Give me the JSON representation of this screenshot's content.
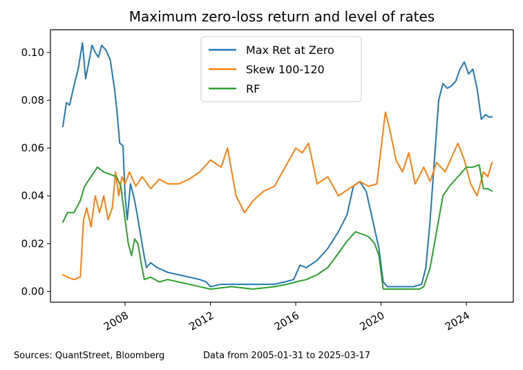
{
  "chart_data": {
    "type": "line",
    "title": "Maximum zero-loss return and level of rates",
    "xlabel": "",
    "ylabel": "",
    "xlim": [
      2004.5,
      2026.2
    ],
    "ylim": [
      -0.0045,
      0.1095
    ],
    "x_ticks": [
      2008,
      2012,
      2016,
      2020,
      2024
    ],
    "x_tick_labels": [
      "2008",
      "2012",
      "2016",
      "2020",
      "2024"
    ],
    "y_ticks": [
      0.0,
      0.02,
      0.04,
      0.06,
      0.08,
      0.1
    ],
    "y_tick_labels": [
      "0.00",
      "0.02",
      "0.04",
      "0.06",
      "0.08",
      "0.10"
    ],
    "grid": false,
    "legend_position": "upper-center",
    "series": [
      {
        "name": "Max Ret at Zero",
        "color": "#1f77b4",
        "x": [
          2005.08,
          2005.25,
          2005.4,
          2005.6,
          2005.8,
          2006.0,
          2006.15,
          2006.3,
          2006.45,
          2006.6,
          2006.75,
          2006.9,
          2007.1,
          2007.3,
          2007.5,
          2007.6,
          2007.75,
          2007.9,
          2008.0,
          2008.1,
          2008.25,
          2008.4,
          2008.55,
          2008.7,
          2008.85,
          2009.0,
          2009.2,
          2009.5,
          2010.0,
          2010.5,
          2011.0,
          2011.5,
          2011.8,
          2012.0,
          2012.5,
          2013.0,
          2014.0,
          2015.0,
          2015.5,
          2015.9,
          2016.2,
          2016.5,
          2017.0,
          2017.5,
          2018.0,
          2018.4,
          2018.7,
          2019.0,
          2019.3,
          2019.6,
          2019.9,
          2020.1,
          2020.3,
          2020.6,
          2021.0,
          2021.5,
          2021.9,
          2022.1,
          2022.3,
          2022.5,
          2022.7,
          2022.9,
          2023.1,
          2023.3,
          2023.5,
          2023.7,
          2023.9,
          2024.1,
          2024.3,
          2024.5,
          2024.7,
          2024.9,
          2025.05,
          2025.2
        ],
        "values": [
          0.069,
          0.079,
          0.078,
          0.086,
          0.093,
          0.104,
          0.089,
          0.096,
          0.103,
          0.1,
          0.098,
          0.103,
          0.101,
          0.097,
          0.085,
          0.077,
          0.062,
          0.061,
          0.04,
          0.03,
          0.045,
          0.04,
          0.033,
          0.025,
          0.017,
          0.01,
          0.012,
          0.01,
          0.008,
          0.007,
          0.006,
          0.005,
          0.004,
          0.002,
          0.003,
          0.003,
          0.003,
          0.003,
          0.004,
          0.005,
          0.011,
          0.01,
          0.013,
          0.018,
          0.025,
          0.032,
          0.044,
          0.046,
          0.042,
          0.03,
          0.018,
          0.004,
          0.002,
          0.002,
          0.002,
          0.002,
          0.003,
          0.01,
          0.03,
          0.055,
          0.08,
          0.087,
          0.085,
          0.086,
          0.088,
          0.093,
          0.096,
          0.091,
          0.093,
          0.085,
          0.072,
          0.074,
          0.073,
          0.073
        ]
      },
      {
        "name": "Skew 100-120",
        "color": "#ff7f0e",
        "x": [
          2005.08,
          2005.3,
          2005.6,
          2005.9,
          2006.05,
          2006.2,
          2006.4,
          2006.6,
          2006.8,
          2007.0,
          2007.2,
          2007.4,
          2007.55,
          2007.7,
          2007.85,
          2008.0,
          2008.2,
          2008.5,
          2008.8,
          2009.2,
          2009.6,
          2010.0,
          2010.5,
          2011.0,
          2011.5,
          2012.0,
          2012.5,
          2012.8,
          2013.2,
          2013.6,
          2014.0,
          2014.5,
          2015.0,
          2015.5,
          2016.0,
          2016.3,
          2016.6,
          2017.0,
          2017.5,
          2018.0,
          2018.5,
          2019.0,
          2019.4,
          2019.8,
          2020.0,
          2020.2,
          2020.4,
          2020.7,
          2021.0,
          2021.3,
          2021.6,
          2022.0,
          2022.3,
          2022.6,
          2023.0,
          2023.3,
          2023.6,
          2023.9,
          2024.2,
          2024.5,
          2024.8,
          2025.0,
          2025.2
        ],
        "values": [
          0.007,
          0.006,
          0.005,
          0.006,
          0.03,
          0.035,
          0.027,
          0.04,
          0.033,
          0.04,
          0.03,
          0.035,
          0.05,
          0.04,
          0.048,
          0.045,
          0.05,
          0.044,
          0.048,
          0.043,
          0.047,
          0.045,
          0.045,
          0.047,
          0.05,
          0.055,
          0.052,
          0.06,
          0.04,
          0.033,
          0.038,
          0.042,
          0.044,
          0.052,
          0.06,
          0.058,
          0.062,
          0.045,
          0.048,
          0.04,
          0.043,
          0.046,
          0.044,
          0.045,
          0.06,
          0.075,
          0.068,
          0.055,
          0.05,
          0.058,
          0.045,
          0.052,
          0.046,
          0.054,
          0.05,
          0.056,
          0.062,
          0.055,
          0.045,
          0.04,
          0.05,
          0.048,
          0.054
        ]
      },
      {
        "name": "RF",
        "color": "#2ca02c",
        "x": [
          2005.08,
          2005.3,
          2005.6,
          2005.9,
          2006.1,
          2006.4,
          2006.7,
          2007.0,
          2007.3,
          2007.6,
          2007.8,
          2008.0,
          2008.15,
          2008.3,
          2008.45,
          2008.6,
          2008.75,
          2008.9,
          2009.2,
          2009.6,
          2010.0,
          2010.5,
          2011.0,
          2011.5,
          2012.0,
          2013.0,
          2014.0,
          2015.0,
          2015.6,
          2016.0,
          2016.5,
          2017.0,
          2017.5,
          2018.0,
          2018.4,
          2018.8,
          2019.1,
          2019.4,
          2019.7,
          2019.9,
          2020.1,
          2020.3,
          2020.6,
          2021.0,
          2021.5,
          2021.8,
          2022.0,
          2022.3,
          2022.6,
          2022.9,
          2023.2,
          2023.5,
          2023.8,
          2024.0,
          2024.3,
          2024.6,
          2024.8,
          2025.0,
          2025.2
        ],
        "values": [
          0.029,
          0.033,
          0.033,
          0.038,
          0.044,
          0.048,
          0.052,
          0.05,
          0.049,
          0.048,
          0.044,
          0.03,
          0.02,
          0.015,
          0.022,
          0.02,
          0.012,
          0.005,
          0.006,
          0.004,
          0.005,
          0.004,
          0.003,
          0.002,
          0.001,
          0.002,
          0.001,
          0.002,
          0.003,
          0.004,
          0.005,
          0.007,
          0.01,
          0.016,
          0.021,
          0.025,
          0.024,
          0.023,
          0.02,
          0.015,
          0.001,
          0.001,
          0.001,
          0.001,
          0.001,
          0.001,
          0.002,
          0.01,
          0.025,
          0.04,
          0.044,
          0.047,
          0.05,
          0.052,
          0.052,
          0.053,
          0.043,
          0.043,
          0.042
        ]
      }
    ]
  },
  "footer": {
    "sources": "Sources: QuantStreet, Bloomberg",
    "date_range": "Data from 2005-01-31 to 2025-03-17"
  }
}
